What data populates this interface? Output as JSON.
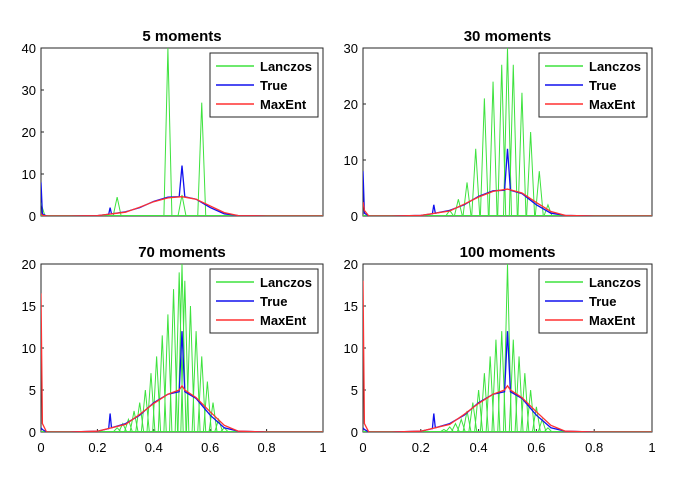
{
  "chart_data": [
    {
      "type": "line",
      "title": "5 moments",
      "xlim": [
        0,
        1
      ],
      "ylim": [
        0,
        40
      ],
      "yticks": [
        0,
        10,
        20,
        30,
        40
      ],
      "xticks": [],
      "legend": "top-right",
      "series": [
        {
          "name": "Lanczos",
          "color": "#3ee23e",
          "style": "spikes",
          "x": [
            0.0,
            0.27,
            0.45,
            0.5,
            0.57
          ],
          "y": [
            3,
            4.5,
            40,
            5,
            27
          ]
        },
        {
          "name": "True",
          "color": "#1010ee",
          "style": "line",
          "x": [
            0.0,
            0.005,
            0.02,
            0.1,
            0.2,
            0.24,
            0.245,
            0.25,
            0.3,
            0.35,
            0.4,
            0.45,
            0.49,
            0.5,
            0.51,
            0.55,
            0.6,
            0.65,
            0.7,
            0.8,
            1.0
          ],
          "y": [
            8,
            0.5,
            0,
            0,
            0.1,
            0.4,
            2,
            0.5,
            1,
            2,
            3.5,
            4.5,
            4.6,
            12,
            4.6,
            4,
            2,
            0.5,
            0.1,
            0,
            0
          ]
        },
        {
          "name": "MaxEnt",
          "color": "#ff3030",
          "style": "line",
          "x": [
            0.0,
            0.005,
            0.02,
            0.1,
            0.2,
            0.3,
            0.35,
            0.4,
            0.45,
            0.5,
            0.55,
            0.6,
            0.65,
            0.7,
            0.8,
            1.0
          ],
          "y": [
            0.5,
            0.2,
            0,
            0,
            0.1,
            0.9,
            2.1,
            3.4,
            4.3,
            4.6,
            4.0,
            2.4,
            0.8,
            0.1,
            0,
            0
          ]
        }
      ]
    },
    {
      "type": "line",
      "title": "30 moments",
      "xlim": [
        0,
        1
      ],
      "ylim": [
        0,
        30
      ],
      "yticks": [
        0,
        10,
        20,
        30
      ],
      "xticks": [],
      "legend": "top-right",
      "series": [
        {
          "name": "Lanczos",
          "color": "#3ee23e",
          "style": "spikes",
          "x": [
            0.3,
            0.33,
            0.36,
            0.39,
            0.42,
            0.45,
            0.48,
            0.5,
            0.52,
            0.55,
            0.58,
            0.61,
            0.64
          ],
          "y": [
            1,
            3,
            6,
            12,
            21,
            24,
            27,
            30,
            27,
            22,
            15,
            8,
            2
          ]
        },
        {
          "name": "True",
          "color": "#1010ee",
          "style": "line",
          "x": [
            0.0,
            0.005,
            0.02,
            0.1,
            0.2,
            0.24,
            0.245,
            0.25,
            0.3,
            0.35,
            0.4,
            0.45,
            0.49,
            0.5,
            0.51,
            0.55,
            0.6,
            0.65,
            0.7,
            0.8,
            1.0
          ],
          "y": [
            8,
            0.5,
            0,
            0,
            0.1,
            0.4,
            2,
            0.5,
            1,
            2,
            3.5,
            4.5,
            4.6,
            12,
            4.6,
            4,
            2,
            0.5,
            0.1,
            0,
            0
          ]
        },
        {
          "name": "MaxEnt",
          "color": "#ff3030",
          "style": "line",
          "x": [
            0.0,
            0.005,
            0.02,
            0.1,
            0.2,
            0.3,
            0.35,
            0.4,
            0.45,
            0.5,
            0.55,
            0.6,
            0.65,
            0.7,
            0.8,
            1.0
          ],
          "y": [
            2.5,
            1,
            0,
            0,
            0.1,
            0.9,
            2.1,
            3.4,
            4.4,
            4.8,
            4.1,
            2.4,
            0.8,
            0.1,
            0,
            0
          ]
        }
      ]
    },
    {
      "type": "line",
      "title": "70 moments",
      "xlim": [
        0,
        1
      ],
      "ylim": [
        0,
        20
      ],
      "yticks": [
        0,
        5,
        10,
        15,
        20
      ],
      "xticks": [
        0,
        0.2,
        0.4,
        0.6,
        0.8,
        1
      ],
      "xticklabels": [
        "0",
        "0.2",
        "0.4",
        "0.6",
        "0.8",
        "1"
      ],
      "legend": "top-right",
      "series": [
        {
          "name": "Lanczos",
          "color": "#3ee23e",
          "style": "spikes",
          "x": [
            0.27,
            0.29,
            0.31,
            0.33,
            0.35,
            0.37,
            0.39,
            0.41,
            0.43,
            0.45,
            0.47,
            0.49,
            0.5,
            0.51,
            0.53,
            0.55,
            0.57,
            0.59,
            0.61,
            0.63,
            0.65
          ],
          "y": [
            0.5,
            1,
            1.5,
            2.5,
            3.5,
            5,
            7,
            9,
            11.5,
            14,
            17,
            19,
            20,
            18,
            15,
            12,
            9,
            6,
            3.5,
            1.5,
            0.5
          ]
        },
        {
          "name": "True",
          "color": "#1010ee",
          "style": "line",
          "x": [
            0.0,
            0.005,
            0.02,
            0.1,
            0.2,
            0.24,
            0.245,
            0.25,
            0.3,
            0.35,
            0.4,
            0.45,
            0.49,
            0.5,
            0.51,
            0.55,
            0.6,
            0.65,
            0.7,
            0.8,
            1.0
          ],
          "y": [
            0.5,
            0.3,
            0,
            0,
            0.1,
            0.4,
            2.2,
            0.5,
            1,
            2,
            3.5,
            4.5,
            4.8,
            12,
            4.8,
            4,
            2,
            0.5,
            0.1,
            0,
            0
          ]
        },
        {
          "name": "MaxEnt",
          "color": "#ff3030",
          "style": "line",
          "x": [
            0.0,
            0.005,
            0.02,
            0.1,
            0.2,
            0.3,
            0.35,
            0.4,
            0.45,
            0.49,
            0.5,
            0.51,
            0.55,
            0.6,
            0.65,
            0.7,
            0.8,
            1.0
          ],
          "y": [
            16.5,
            1,
            0,
            0,
            0.1,
            0.9,
            2.1,
            3.4,
            4.5,
            5,
            5.5,
            5,
            4.1,
            2.4,
            0.8,
            0.1,
            0,
            0
          ]
        }
      ]
    },
    {
      "type": "line",
      "title": "100 moments",
      "xlim": [
        0,
        1
      ],
      "ylim": [
        0,
        20
      ],
      "yticks": [
        0,
        5,
        10,
        15,
        20
      ],
      "xticks": [
        0,
        0.2,
        0.4,
        0.6,
        0.8,
        1
      ],
      "xticklabels": [
        "0",
        "0.2",
        "0.4",
        "0.6",
        "0.8",
        "1"
      ],
      "legend": "top-right",
      "series": [
        {
          "name": "Lanczos",
          "color": "#3ee23e",
          "style": "spikes",
          "x": [
            0.28,
            0.3,
            0.32,
            0.34,
            0.36,
            0.38,
            0.4,
            0.42,
            0.44,
            0.46,
            0.48,
            0.5,
            0.52,
            0.54,
            0.56,
            0.58,
            0.6,
            0.62,
            0.64
          ],
          "y": [
            0.3,
            0.6,
            1,
            1.5,
            2.5,
            3.5,
            5,
            7,
            9,
            11,
            12,
            20,
            11,
            9,
            7,
            5,
            3,
            1.5,
            0.5
          ]
        },
        {
          "name": "True",
          "color": "#1010ee",
          "style": "line",
          "x": [
            0.0,
            0.005,
            0.02,
            0.1,
            0.2,
            0.24,
            0.245,
            0.25,
            0.3,
            0.35,
            0.4,
            0.45,
            0.49,
            0.5,
            0.51,
            0.55,
            0.6,
            0.65,
            0.7,
            0.8,
            1.0
          ],
          "y": [
            0.5,
            0.3,
            0,
            0,
            0.1,
            0.4,
            2.2,
            0.5,
            1,
            2,
            3.5,
            4.5,
            4.8,
            12,
            4.8,
            4,
            2,
            0.5,
            0.1,
            0,
            0
          ]
        },
        {
          "name": "MaxEnt",
          "color": "#ff3030",
          "style": "line",
          "x": [
            0.0,
            0.005,
            0.02,
            0.1,
            0.2,
            0.3,
            0.35,
            0.4,
            0.45,
            0.49,
            0.5,
            0.51,
            0.55,
            0.6,
            0.65,
            0.7,
            0.8,
            1.0
          ],
          "y": [
            18,
            1,
            0,
            0,
            0.1,
            0.9,
            2.1,
            3.4,
            4.5,
            5,
            5.5,
            5,
            4.1,
            2.4,
            0.8,
            0.1,
            0,
            0
          ]
        }
      ]
    }
  ]
}
